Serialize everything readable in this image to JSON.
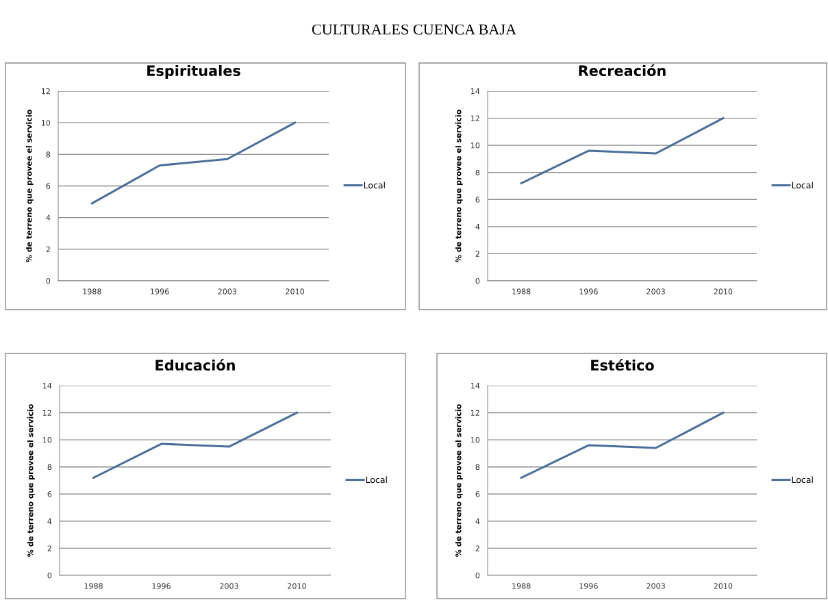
{
  "chart_data": [
    {
      "type": "line",
      "title": "Espirituales",
      "annotations": [
        "CULTURALES CUENCA BAJA"
      ],
      "ylabel": "% de terreno que provee el servicio",
      "categories": [
        "1988",
        "1996",
        "2003",
        "2010"
      ],
      "series": [
        {
          "name": "Local",
          "color": "#4a6f9a",
          "values": [
            4.9,
            7.3,
            7.7,
            10.0
          ]
        }
      ],
      "ylim": [
        0,
        12
      ],
      "yticks": [
        0,
        2,
        4,
        6,
        8,
        10,
        12
      ],
      "grid": "y",
      "legend": "right"
    },
    {
      "type": "line",
      "title": "Recreación",
      "ylabel": "% de terreno que provee el servicio",
      "categories": [
        "1988",
        "1996",
        "2003",
        "2010"
      ],
      "series": [
        {
          "name": "Local",
          "color": "#4a6f9a",
          "values": [
            7.2,
            9.6,
            9.4,
            12.0
          ]
        }
      ],
      "ylim": [
        0,
        14
      ],
      "yticks": [
        0,
        2,
        4,
        6,
        8,
        10,
        12,
        14
      ],
      "grid": "y",
      "legend": "right"
    },
    {
      "type": "line",
      "title": "Educación",
      "ylabel": "% de terreno que provee el servicio",
      "categories": [
        "1988",
        "1996",
        "2003",
        "2010"
      ],
      "series": [
        {
          "name": "Local",
          "color": "#4a6f9a",
          "values": [
            7.2,
            9.7,
            9.5,
            12.0
          ]
        }
      ],
      "ylim": [
        0,
        14
      ],
      "yticks": [
        0,
        2,
        4,
        6,
        8,
        10,
        12,
        14
      ],
      "grid": "y",
      "legend": "right"
    },
    {
      "type": "line",
      "title": "Estético",
      "ylabel": "% de terreno que provee el servicio",
      "categories": [
        "1988",
        "1996",
        "2003",
        "2010"
      ],
      "series": [
        {
          "name": "Local",
          "color": "#4a6f9a",
          "values": [
            7.2,
            9.6,
            9.4,
            12.0
          ]
        }
      ],
      "ylim": [
        0,
        14
      ],
      "yticks": [
        0,
        2,
        4,
        6,
        8,
        10,
        12,
        14
      ],
      "grid": "y",
      "legend": "right"
    }
  ]
}
